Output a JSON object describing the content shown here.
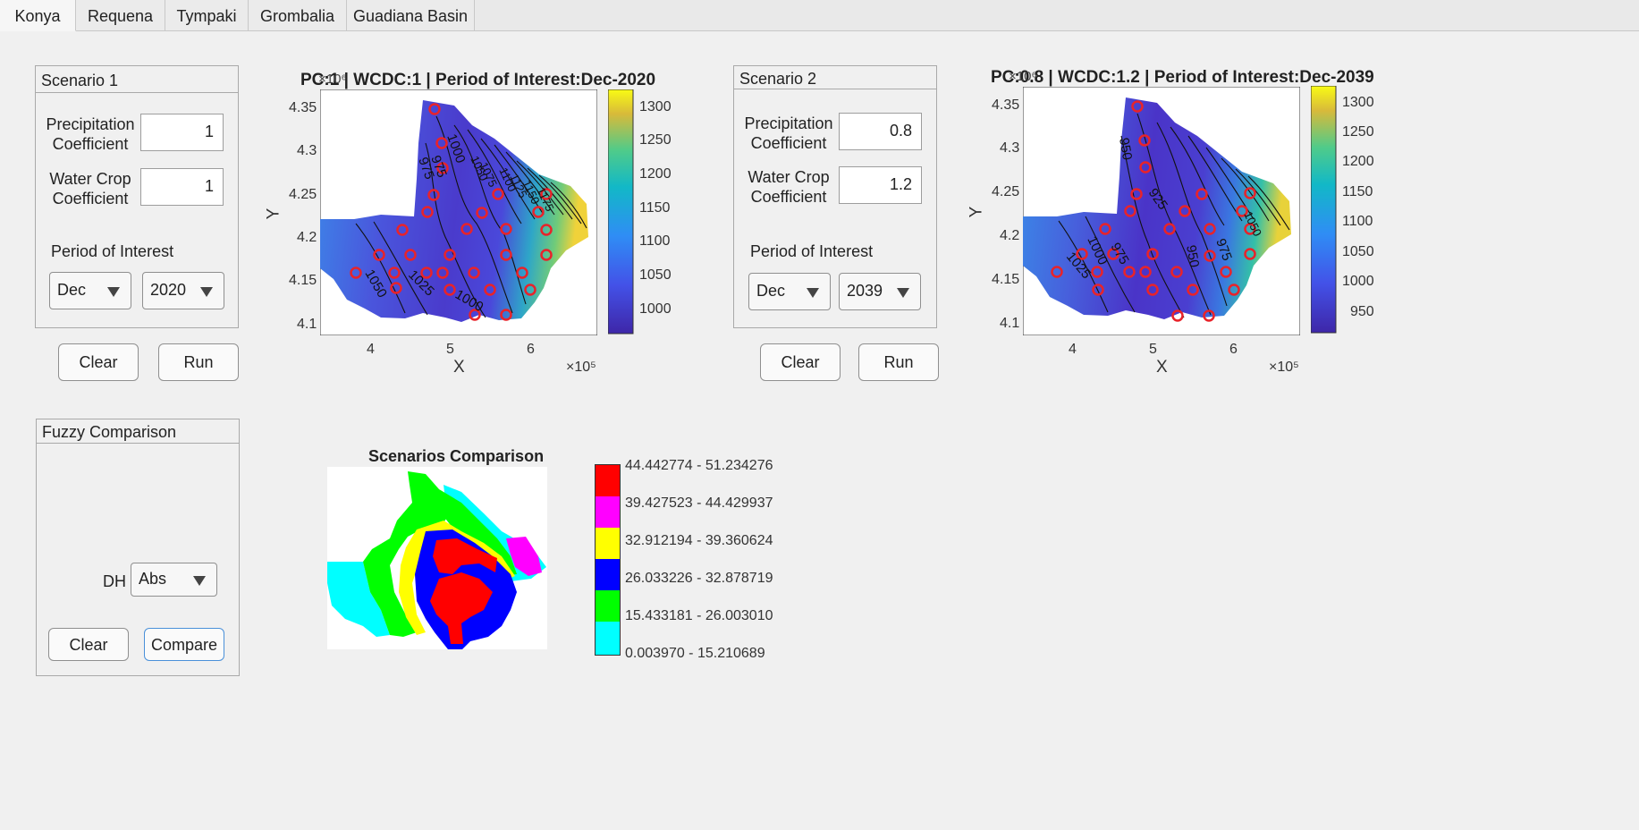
{
  "tabs": [
    "Konya",
    "Requena",
    "Tympaki",
    "Grombalia",
    "Guadiana Basin"
  ],
  "scenario1": {
    "title": "Scenario 1",
    "precip_label_1": "Precipitation",
    "precip_label_2": "Coefficient",
    "precip_value": "1",
    "wcc_label_1": "Water Crop",
    "wcc_label_2": "Coefficient",
    "wcc_value": "1",
    "period_label": "Period of Interest",
    "month": "Dec",
    "year": "2020",
    "clear": "Clear",
    "run": "Run"
  },
  "scenario2": {
    "title": "Scenario 2",
    "precip_label_1": "Precipitation",
    "precip_label_2": "Coefficient",
    "precip_value": "0.8",
    "wcc_label_1": "Water Crop",
    "wcc_label_2": "Coefficient",
    "wcc_value": "1.2",
    "period_label": "Period of Interest",
    "month": "Dec",
    "year": "2039",
    "clear": "Clear",
    "run": "Run"
  },
  "fuzzy": {
    "title": "Fuzzy Comparison",
    "dh_label": "DH",
    "dh_value": "Abs",
    "clear": "Clear",
    "compare": "Compare"
  },
  "map1": {
    "title": "PC:1 | WCDC:1 | Period of Interest:Dec-2020",
    "exp_y": "×10⁶",
    "exp_x": "×10⁵",
    "xlabel": "X",
    "ylabel": "Y",
    "yticks": [
      "4.35",
      "4.3",
      "4.25",
      "4.2",
      "4.15",
      "4.1"
    ],
    "xticks": [
      "4",
      "5",
      "6"
    ],
    "cbar_ticks": [
      "1300",
      "1250",
      "1200",
      "1150",
      "1100",
      "1050",
      "1000"
    ],
    "contour_labels": [
      "975",
      "1000",
      "1025",
      "1050",
      "1000",
      "975",
      "1050",
      "1075",
      "1100",
      "1125",
      "1150",
      "1175"
    ]
  },
  "map2": {
    "title": "PC:0.8 | WCDC:1.2 | Period of Interest:Dec-2039",
    "exp_y": "×10⁶",
    "exp_x": "×10⁵",
    "xlabel": "X",
    "ylabel": "Y",
    "yticks": [
      "4.35",
      "4.3",
      "4.25",
      "4.2",
      "4.15",
      "4.1"
    ],
    "xticks": [
      "4",
      "5",
      "6"
    ],
    "cbar_ticks": [
      "1300",
      "1250",
      "1200",
      "1150",
      "1100",
      "1050",
      "1000",
      "950"
    ],
    "contour_labels": [
      "950",
      "925",
      "1000",
      "975",
      "1025",
      "950",
      "975",
      "1050"
    ]
  },
  "comparison": {
    "title": "Scenarios Comparison",
    "legend": [
      {
        "label": "44.442774 - 51.234276",
        "color": "#ff0000"
      },
      {
        "label": "39.427523 - 44.429937",
        "color": "#ff00ff"
      },
      {
        "label": "32.912194 - 39.360624",
        "color": "#ffff00"
      },
      {
        "label": "26.033226 - 32.878719",
        "color": "#0000ff"
      },
      {
        "label": "15.433181 - 26.003010",
        "color": "#00ff00"
      },
      {
        "label": "0.003970 - 15.210689",
        "color": "#00ffff"
      }
    ]
  }
}
